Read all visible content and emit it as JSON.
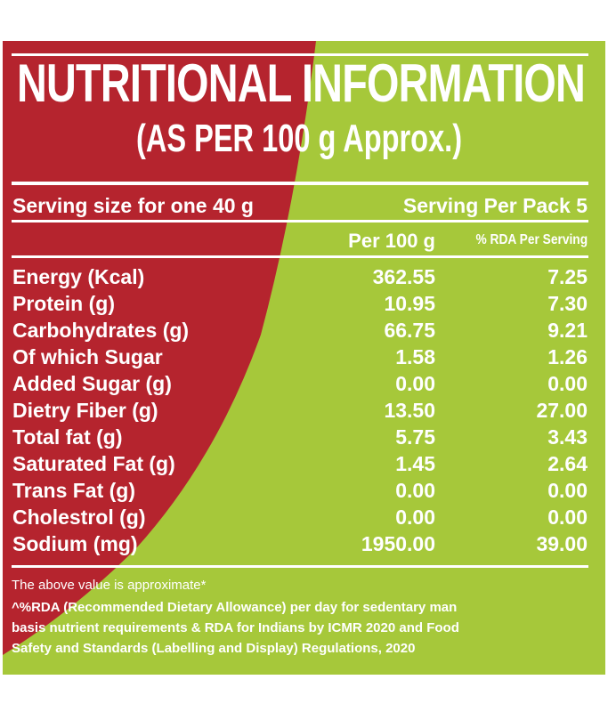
{
  "title": "NUTRITIONAL INFORMATION",
  "subtitle": "(AS PER 100 g Approx.)",
  "serving_size": "Serving size for one 40 g",
  "servings_per_pack": "Serving Per Pack 5",
  "columns": {
    "per100": "Per 100 g",
    "rda": "% RDA Per Serving"
  },
  "rows": [
    {
      "label": "Energy (Kcal)",
      "per100": "362.55",
      "rda": "7.25"
    },
    {
      "label": "Protein (g)",
      "per100": "10.95",
      "rda": "7.30"
    },
    {
      "label": "Carbohydrates (g)",
      "per100": "66.75",
      "rda": "9.21"
    },
    {
      "label": "Of which Sugar",
      "per100": "1.58",
      "rda": "1.26"
    },
    {
      "label": "Added Sugar (g)",
      "per100": "0.00",
      "rda": "0.00"
    },
    {
      "label": "Dietry Fiber (g)",
      "per100": "13.50",
      "rda": "27.00"
    },
    {
      "label": "Total fat (g)",
      "per100": "5.75",
      "rda": "3.43"
    },
    {
      "label": "Saturated Fat (g)",
      "per100": "1.45",
      "rda": "2.64"
    },
    {
      "label": "Trans Fat (g)",
      "per100": "0.00",
      "rda": "0.00"
    },
    {
      "label": "Cholestrol (g)",
      "per100": "0.00",
      "rda": "0.00"
    },
    {
      "label": "Sodium (mg)",
      "per100": "1950.00",
      "rda": "39.00"
    }
  ],
  "footer": {
    "note": "The above value is approximate*",
    "line1": "^%RDA (Recommended Dietary Allowance) per day for sedentary man",
    "line2": "basis nutrient requirements & RDA for Indians by ICMR 2020 and Food",
    "line3": "Safety and Standards (Labelling and Display) Regulations, 2020"
  },
  "colors": {
    "red": "#b5242e",
    "green": "#a6c83a",
    "text": "#ffffff"
  }
}
